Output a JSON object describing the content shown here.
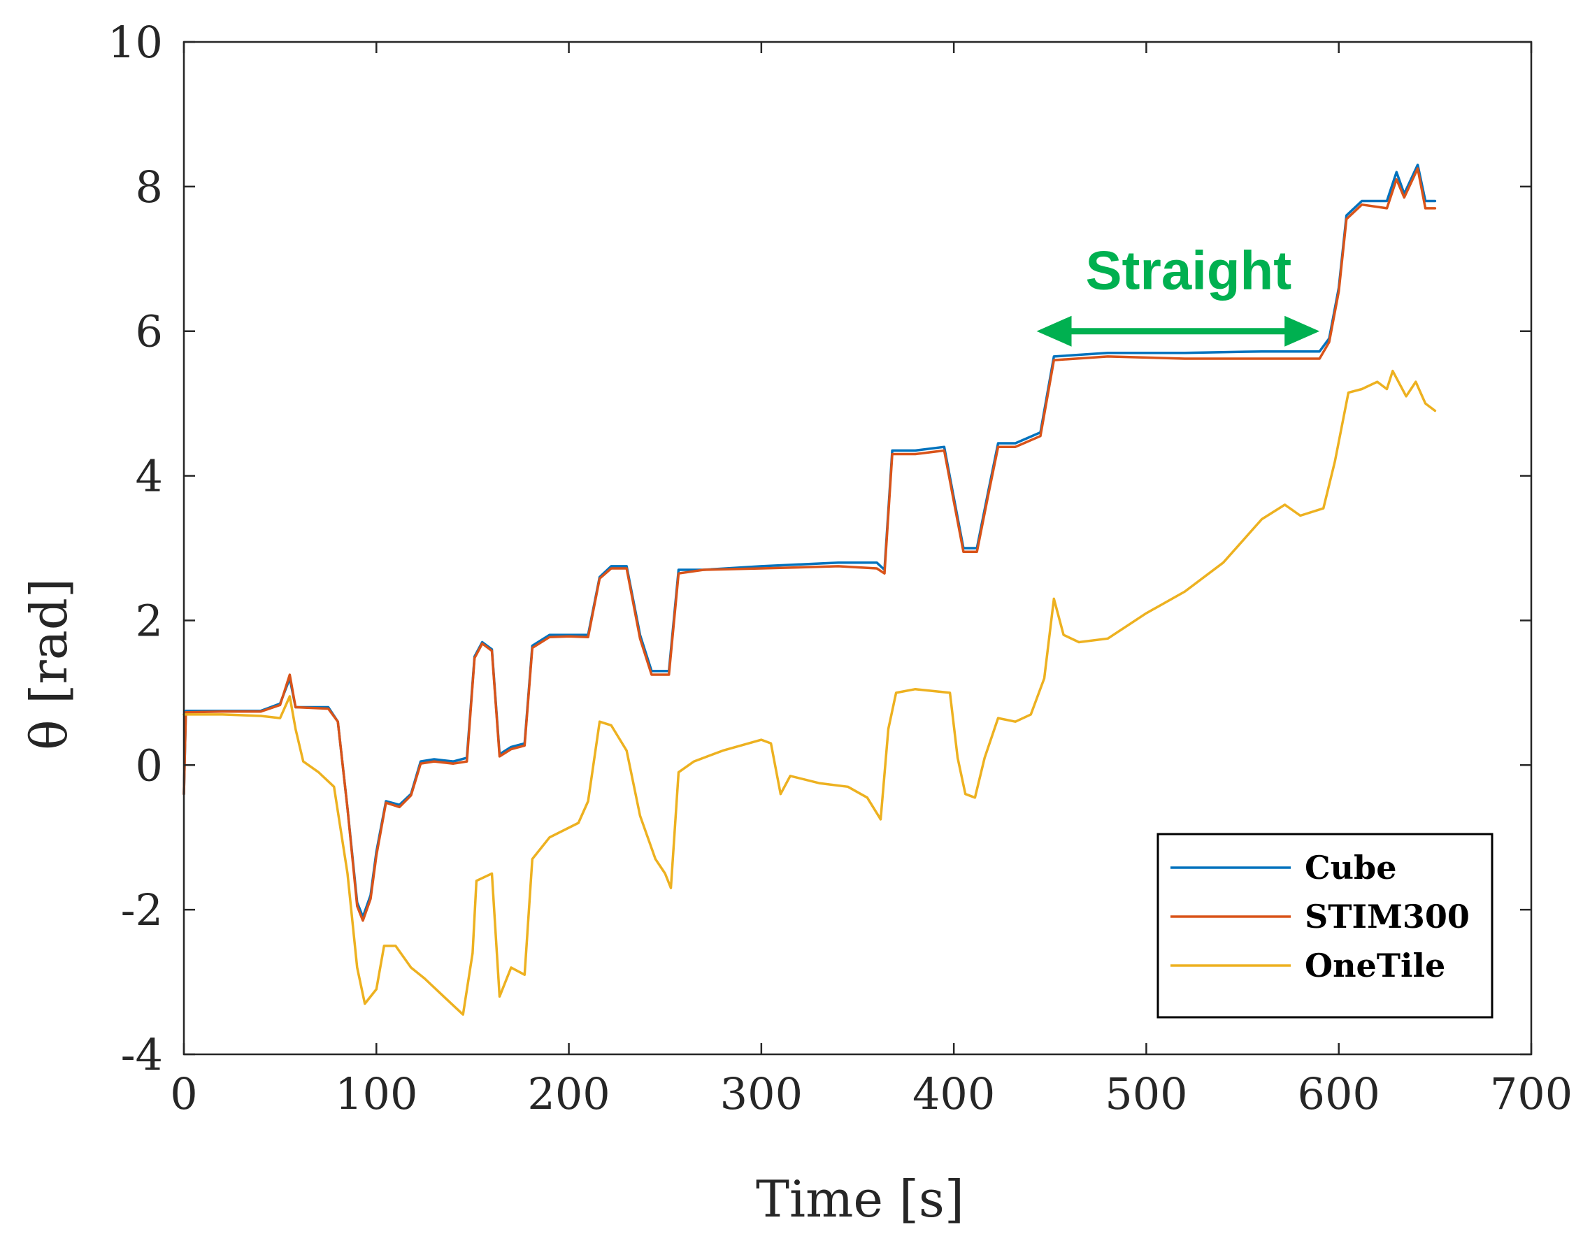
{
  "chart_data": {
    "type": "line",
    "title": "",
    "xlabel": "Time [s]",
    "ylabel": "θ [rad]",
    "xlim": [
      0,
      700
    ],
    "ylim": [
      -4,
      10
    ],
    "xticks": [
      0,
      100,
      200,
      300,
      400,
      500,
      600,
      700
    ],
    "yticks": [
      -4,
      -2,
      0,
      2,
      4,
      6,
      8,
      10
    ],
    "xtick_labels": [
      "0",
      "100",
      "200",
      "300",
      "400",
      "500",
      "600",
      "700"
    ],
    "ytick_labels": [
      "-4",
      "-2",
      "0",
      "2",
      "4",
      "6",
      "8",
      "10"
    ],
    "grid": false,
    "legend_position": "bottom-right",
    "series": [
      {
        "name": "Cube",
        "color": "#0072BD",
        "points": [
          [
            0,
            -0.4
          ],
          [
            1,
            0.75
          ],
          [
            20,
            0.75
          ],
          [
            40,
            0.75
          ],
          [
            50,
            0.85
          ],
          [
            55,
            1.2
          ],
          [
            58,
            0.8
          ],
          [
            75,
            0.8
          ],
          [
            80,
            0.6
          ],
          [
            85,
            -0.6
          ],
          [
            90,
            -1.9
          ],
          [
            93,
            -2.1
          ],
          [
            97,
            -1.8
          ],
          [
            100,
            -1.2
          ],
          [
            105,
            -0.5
          ],
          [
            112,
            -0.55
          ],
          [
            118,
            -0.4
          ],
          [
            123,
            0.05
          ],
          [
            130,
            0.08
          ],
          [
            140,
            0.05
          ],
          [
            147,
            0.1
          ],
          [
            151,
            1.5
          ],
          [
            155,
            1.7
          ],
          [
            160,
            1.6
          ],
          [
            164,
            0.15
          ],
          [
            170,
            0.25
          ],
          [
            177,
            0.3
          ],
          [
            181,
            1.65
          ],
          [
            190,
            1.8
          ],
          [
            200,
            1.8
          ],
          [
            210,
            1.8
          ],
          [
            216,
            2.6
          ],
          [
            222,
            2.75
          ],
          [
            230,
            2.75
          ],
          [
            237,
            1.8
          ],
          [
            243,
            1.3
          ],
          [
            252,
            1.3
          ],
          [
            257,
            2.7
          ],
          [
            270,
            2.7
          ],
          [
            300,
            2.75
          ],
          [
            340,
            2.8
          ],
          [
            360,
            2.8
          ],
          [
            364,
            2.7
          ],
          [
            368,
            4.35
          ],
          [
            380,
            4.35
          ],
          [
            395,
            4.4
          ],
          [
            400,
            3.7
          ],
          [
            405,
            3.0
          ],
          [
            412,
            3.0
          ],
          [
            418,
            3.8
          ],
          [
            423,
            4.45
          ],
          [
            432,
            4.45
          ],
          [
            445,
            4.6
          ],
          [
            452,
            5.65
          ],
          [
            480,
            5.7
          ],
          [
            520,
            5.7
          ],
          [
            560,
            5.72
          ],
          [
            590,
            5.72
          ],
          [
            595,
            5.9
          ],
          [
            600,
            6.6
          ],
          [
            604,
            7.6
          ],
          [
            612,
            7.8
          ],
          [
            625,
            7.8
          ],
          [
            630,
            8.2
          ],
          [
            634,
            7.9
          ],
          [
            641,
            8.3
          ],
          [
            645,
            7.8
          ],
          [
            650,
            7.8
          ]
        ]
      },
      {
        "name": "STIM300",
        "color": "#D95319",
        "points": [
          [
            0,
            -0.4
          ],
          [
            1,
            0.73
          ],
          [
            20,
            0.74
          ],
          [
            40,
            0.74
          ],
          [
            50,
            0.83
          ],
          [
            55,
            1.25
          ],
          [
            58,
            0.8
          ],
          [
            75,
            0.78
          ],
          [
            80,
            0.6
          ],
          [
            85,
            -0.6
          ],
          [
            90,
            -1.95
          ],
          [
            93,
            -2.15
          ],
          [
            97,
            -1.85
          ],
          [
            100,
            -1.25
          ],
          [
            105,
            -0.52
          ],
          [
            112,
            -0.58
          ],
          [
            118,
            -0.42
          ],
          [
            123,
            0.02
          ],
          [
            130,
            0.05
          ],
          [
            140,
            0.02
          ],
          [
            147,
            0.05
          ],
          [
            151,
            1.48
          ],
          [
            155,
            1.68
          ],
          [
            160,
            1.58
          ],
          [
            164,
            0.12
          ],
          [
            170,
            0.22
          ],
          [
            177,
            0.27
          ],
          [
            181,
            1.62
          ],
          [
            190,
            1.77
          ],
          [
            200,
            1.78
          ],
          [
            210,
            1.77
          ],
          [
            216,
            2.58
          ],
          [
            222,
            2.72
          ],
          [
            230,
            2.72
          ],
          [
            237,
            1.75
          ],
          [
            243,
            1.25
          ],
          [
            252,
            1.25
          ],
          [
            257,
            2.65
          ],
          [
            270,
            2.7
          ],
          [
            300,
            2.72
          ],
          [
            340,
            2.75
          ],
          [
            360,
            2.72
          ],
          [
            364,
            2.65
          ],
          [
            368,
            4.3
          ],
          [
            380,
            4.3
          ],
          [
            395,
            4.35
          ],
          [
            400,
            3.65
          ],
          [
            405,
            2.95
          ],
          [
            412,
            2.95
          ],
          [
            418,
            3.75
          ],
          [
            423,
            4.4
          ],
          [
            432,
            4.4
          ],
          [
            445,
            4.55
          ],
          [
            452,
            5.6
          ],
          [
            480,
            5.65
          ],
          [
            520,
            5.62
          ],
          [
            560,
            5.62
          ],
          [
            590,
            5.62
          ],
          [
            595,
            5.85
          ],
          [
            600,
            6.55
          ],
          [
            604,
            7.55
          ],
          [
            612,
            7.75
          ],
          [
            625,
            7.7
          ],
          [
            630,
            8.1
          ],
          [
            634,
            7.85
          ],
          [
            641,
            8.25
          ],
          [
            645,
            7.7
          ],
          [
            650,
            7.7
          ]
        ]
      },
      {
        "name": "OneTile",
        "color": "#EDB120",
        "points": [
          [
            0,
            0.7
          ],
          [
            20,
            0.7
          ],
          [
            40,
            0.68
          ],
          [
            50,
            0.65
          ],
          [
            55,
            0.95
          ],
          [
            58,
            0.5
          ],
          [
            62,
            0.05
          ],
          [
            70,
            -0.1
          ],
          [
            78,
            -0.3
          ],
          [
            85,
            -1.5
          ],
          [
            90,
            -2.8
          ],
          [
            94,
            -3.3
          ],
          [
            100,
            -3.1
          ],
          [
            104,
            -2.5
          ],
          [
            110,
            -2.5
          ],
          [
            118,
            -2.8
          ],
          [
            125,
            -2.95
          ],
          [
            135,
            -3.2
          ],
          [
            145,
            -3.45
          ],
          [
            150,
            -2.6
          ],
          [
            152,
            -1.6
          ],
          [
            160,
            -1.5
          ],
          [
            164,
            -3.2
          ],
          [
            170,
            -2.8
          ],
          [
            177,
            -2.9
          ],
          [
            181,
            -1.3
          ],
          [
            190,
            -1.0
          ],
          [
            205,
            -0.8
          ],
          [
            210,
            -0.5
          ],
          [
            216,
            0.6
          ],
          [
            222,
            0.55
          ],
          [
            230,
            0.2
          ],
          [
            237,
            -0.7
          ],
          [
            245,
            -1.3
          ],
          [
            250,
            -1.5
          ],
          [
            253,
            -1.7
          ],
          [
            257,
            -0.1
          ],
          [
            265,
            0.05
          ],
          [
            280,
            0.2
          ],
          [
            300,
            0.35
          ],
          [
            305,
            0.3
          ],
          [
            310,
            -0.4
          ],
          [
            315,
            -0.15
          ],
          [
            330,
            -0.25
          ],
          [
            345,
            -0.3
          ],
          [
            355,
            -0.45
          ],
          [
            362,
            -0.75
          ],
          [
            366,
            0.5
          ],
          [
            370,
            1.0
          ],
          [
            380,
            1.05
          ],
          [
            398,
            1.0
          ],
          [
            402,
            0.1
          ],
          [
            406,
            -0.4
          ],
          [
            411,
            -0.45
          ],
          [
            416,
            0.1
          ],
          [
            423,
            0.65
          ],
          [
            432,
            0.6
          ],
          [
            440,
            0.7
          ],
          [
            447,
            1.2
          ],
          [
            452,
            2.3
          ],
          [
            457,
            1.8
          ],
          [
            465,
            1.7
          ],
          [
            480,
            1.75
          ],
          [
            500,
            2.1
          ],
          [
            520,
            2.4
          ],
          [
            540,
            2.8
          ],
          [
            560,
            3.4
          ],
          [
            572,
            3.6
          ],
          [
            580,
            3.45
          ],
          [
            592,
            3.55
          ],
          [
            598,
            4.2
          ],
          [
            605,
            5.15
          ],
          [
            612,
            5.2
          ],
          [
            620,
            5.3
          ],
          [
            625,
            5.2
          ],
          [
            628,
            5.45
          ],
          [
            635,
            5.1
          ],
          [
            640,
            5.3
          ],
          [
            645,
            5.0
          ],
          [
            650,
            4.9
          ]
        ]
      }
    ],
    "annotations": [
      {
        "text": "Straight",
        "x_range": [
          443,
          590
        ],
        "y": 6.0,
        "color": "#00B050"
      }
    ]
  }
}
